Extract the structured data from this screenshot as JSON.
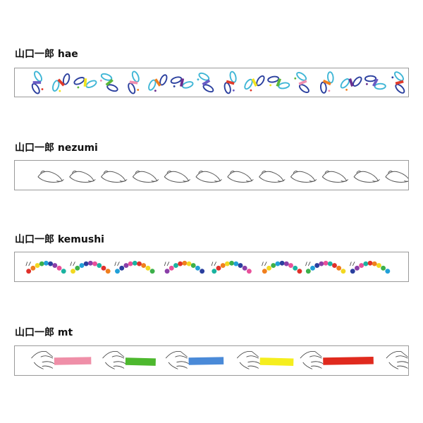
{
  "products": [
    {
      "label": "山口一郎 hae",
      "pattern": "butterflies",
      "colors": [
        "#2a3f9e",
        "#3fb6d6",
        "#6a5cc4",
        "#e03a2a",
        "#f2e320",
        "#5cb83a",
        "#ef8fb0",
        "#f07f1e",
        "#6b2f8f"
      ]
    },
    {
      "label": "山口一郎 nezumi",
      "pattern": "mice sketch",
      "colors": [
        "#555555"
      ]
    },
    {
      "label": "山口一郎 kemushi",
      "pattern": "caterpillars",
      "colors": [
        "#e0302a",
        "#f07f1e",
        "#f2d820",
        "#3cb04a",
        "#21a0d8",
        "#2a3f9e",
        "#8a3fa8",
        "#e9509a",
        "#1ab3a0"
      ]
    },
    {
      "label": "山口一郎 mt",
      "pattern": "hands holding tape",
      "colors": [
        "#ef8fa8",
        "#4db82e",
        "#4a8ad8",
        "#f5ee1e",
        "#e02a1e"
      ]
    }
  ]
}
